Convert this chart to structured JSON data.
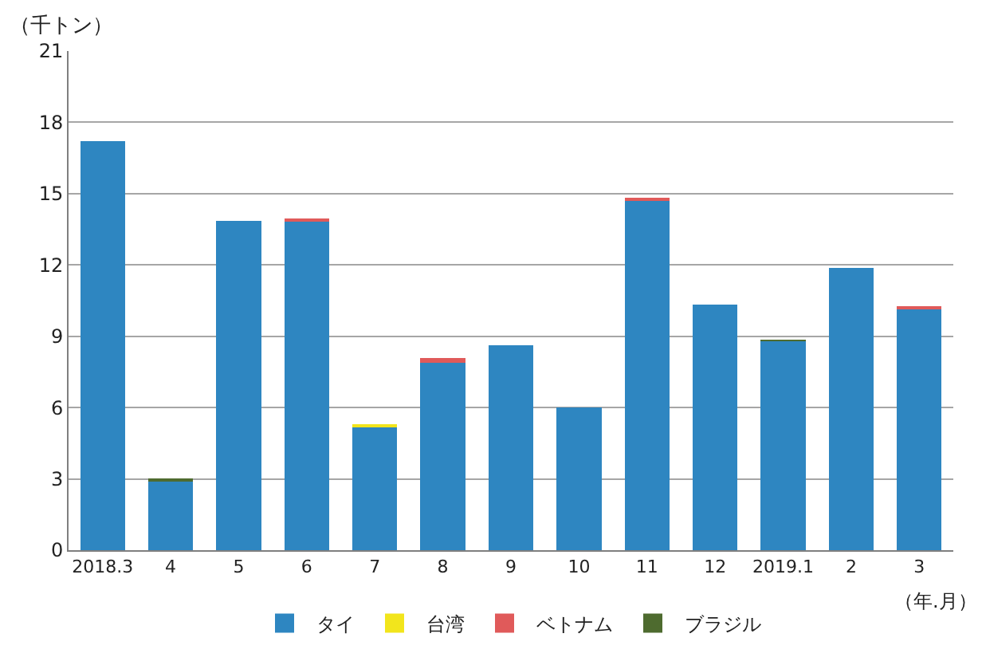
{
  "chart_data": {
    "type": "bar",
    "stacked": true,
    "ylabel": "（千トン）",
    "xlabel": "（年.月）",
    "categories": [
      "2018.3",
      "4",
      "5",
      "6",
      "7",
      "8",
      "9",
      "10",
      "11",
      "12",
      "2019.1",
      "2",
      "3"
    ],
    "series": [
      {
        "name": "タイ",
        "color": "#2e86c1",
        "values": [
          17.2,
          2.95,
          13.85,
          13.85,
          5.22,
          7.87,
          8.63,
          6.0,
          14.76,
          10.32,
          8.8,
          11.88,
          10.15
        ]
      },
      {
        "name": "台湾",
        "color": "#f2e51c",
        "values": [
          0,
          0,
          0,
          0,
          0.05,
          0,
          0,
          0,
          0,
          0,
          0,
          0,
          0
        ]
      },
      {
        "name": "ベトナム",
        "color": "#e05a5a",
        "values": [
          0,
          0,
          0,
          0.07,
          0,
          0.2,
          0,
          0,
          0.05,
          0,
          0,
          0,
          0.05
        ]
      },
      {
        "name": "ブラジル",
        "color": "#4e6b2f",
        "values": [
          0,
          0.05,
          0,
          0,
          0,
          0,
          0,
          0,
          0,
          0,
          0.05,
          0,
          0
        ]
      }
    ],
    "ylim": [
      0,
      21
    ],
    "yticks": [
      0,
      3,
      6,
      9,
      12,
      15,
      18,
      21
    ],
    "grid": "y",
    "legend": "bottom"
  }
}
